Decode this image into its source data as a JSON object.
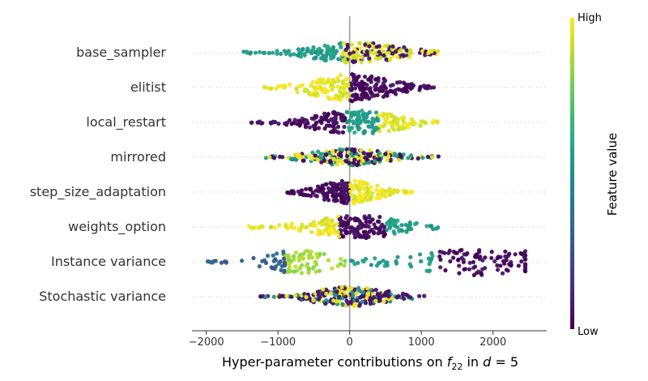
{
  "chart_data": {
    "type": "scatter",
    "subtype": "beeswarm",
    "x_axis_label": {
      "prefix": "Hyper-parameter contributions on ",
      "func_symbol": "f",
      "func_subscript": "22",
      "middle": " in ",
      "dim_symbol": "d",
      "suffix": " = 5"
    },
    "xlim": [
      -2200,
      2750
    ],
    "x_ticks": [
      -2000,
      -1000,
      0,
      1000,
      2000
    ],
    "x_tick_labels": [
      "−2000",
      "−1000",
      "0",
      "1000",
      "2000"
    ],
    "zero_line": 0,
    "features": [
      {
        "name": "base_sampler",
        "min": -1480,
        "max": 1300,
        "peak": 100,
        "width_scale": 0.75,
        "bands": [
          {
            "from": -1480,
            "to": -100,
            "tone": 0.55
          },
          {
            "from": -100,
            "to": 1300,
            "tone": 0.95,
            "mix": 0.02
          }
        ]
      },
      {
        "name": "elitist",
        "min": -1200,
        "max": 1200,
        "peak": 30,
        "width_scale": 1.0,
        "bands": [
          {
            "from": -1200,
            "to": 0,
            "tone": 0.97
          },
          {
            "from": 0,
            "to": 1200,
            "tone": 0.02
          }
        ]
      },
      {
        "name": "local_restart",
        "min": -1380,
        "max": 1230,
        "peak": 100,
        "width_scale": 0.9,
        "bands": [
          {
            "from": -1380,
            "to": -50,
            "tone": 0.03
          },
          {
            "from": -50,
            "to": 400,
            "tone": 0.55
          },
          {
            "from": 400,
            "to": 1230,
            "tone": 0.96
          }
        ]
      },
      {
        "name": "mirrored",
        "min": -1180,
        "max": 1240,
        "peak": 0,
        "width_scale": 0.6,
        "bands": [
          {
            "from": -1180,
            "to": 1240,
            "tone": "mixed3"
          }
        ]
      },
      {
        "name": "step_size_adaptation",
        "min": -900,
        "max": 900,
        "peak": 0,
        "width_scale": 0.85,
        "bands": [
          {
            "from": -900,
            "to": 0,
            "tone": 0.03
          },
          {
            "from": 0,
            "to": 900,
            "tone": 0.97
          }
        ]
      },
      {
        "name": "weights_option",
        "min": -1450,
        "max": 1250,
        "peak": 100,
        "width_scale": 0.85,
        "bands": [
          {
            "from": -1450,
            "to": -150,
            "tone": 0.97
          },
          {
            "from": -150,
            "to": 500,
            "tone": 0.03
          },
          {
            "from": 500,
            "to": 1250,
            "tone": 0.55
          }
        ]
      },
      {
        "name": "Instance variance",
        "min": -2000,
        "max": 2450,
        "peak": 1900,
        "width_scale": 1.0,
        "second_peak": -700,
        "bands": [
          {
            "from": -2000,
            "to": -900,
            "tone": 0.3
          },
          {
            "from": -900,
            "to": 0,
            "tone": 0.85
          },
          {
            "from": 0,
            "to": 1200,
            "tone": 0.55
          },
          {
            "from": 1200,
            "to": 2450,
            "tone": 0.02
          }
        ]
      },
      {
        "name": "Stochastic variance",
        "min": -1260,
        "max": 1120,
        "peak": 0,
        "width_scale": 0.7,
        "bands": [
          {
            "from": -1260,
            "to": 1120,
            "tone": "mixed"
          }
        ]
      }
    ],
    "colorbar": {
      "label": "Feature value",
      "high_label": "High",
      "low_label": "Low",
      "colormap": "viridis",
      "colors": [
        "#440154",
        "#482878",
        "#3e4a89",
        "#31688e",
        "#26828e",
        "#1f9e89",
        "#35b779",
        "#6ece58",
        "#b5de2b",
        "#fde725"
      ]
    },
    "grid": "horizontal-dotted",
    "legend": "colorbar-right"
  }
}
